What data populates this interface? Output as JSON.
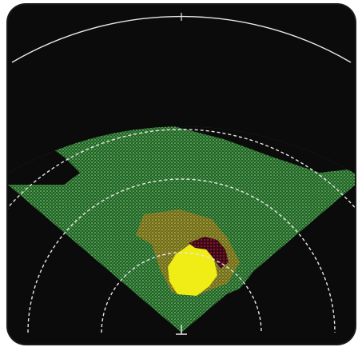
{
  "display": {
    "type": "weather-radar-sector-scan",
    "background_color": "#0b0b0b",
    "range_ring_color": "#e8e8e8",
    "range_rings": 4,
    "beam_sector": "forward-cone",
    "origin_marker": "ownship-t-marker"
  },
  "colors": {
    "level_1": "#2f8a3a",
    "level_1_speckle": "#7fd36a",
    "level_2": "#8a8a2a",
    "level_3": "#e8e81a",
    "level_4": "#5a0e1e",
    "speckle": "#b8e27a"
  },
  "returns": [
    {
      "name": "distant-light-precip",
      "level": "level_1"
    },
    {
      "name": "near-moderate-cell",
      "level": "level_2"
    },
    {
      "name": "heavy-core",
      "level": "level_3"
    },
    {
      "name": "intense-core",
      "level": "level_4"
    }
  ]
}
